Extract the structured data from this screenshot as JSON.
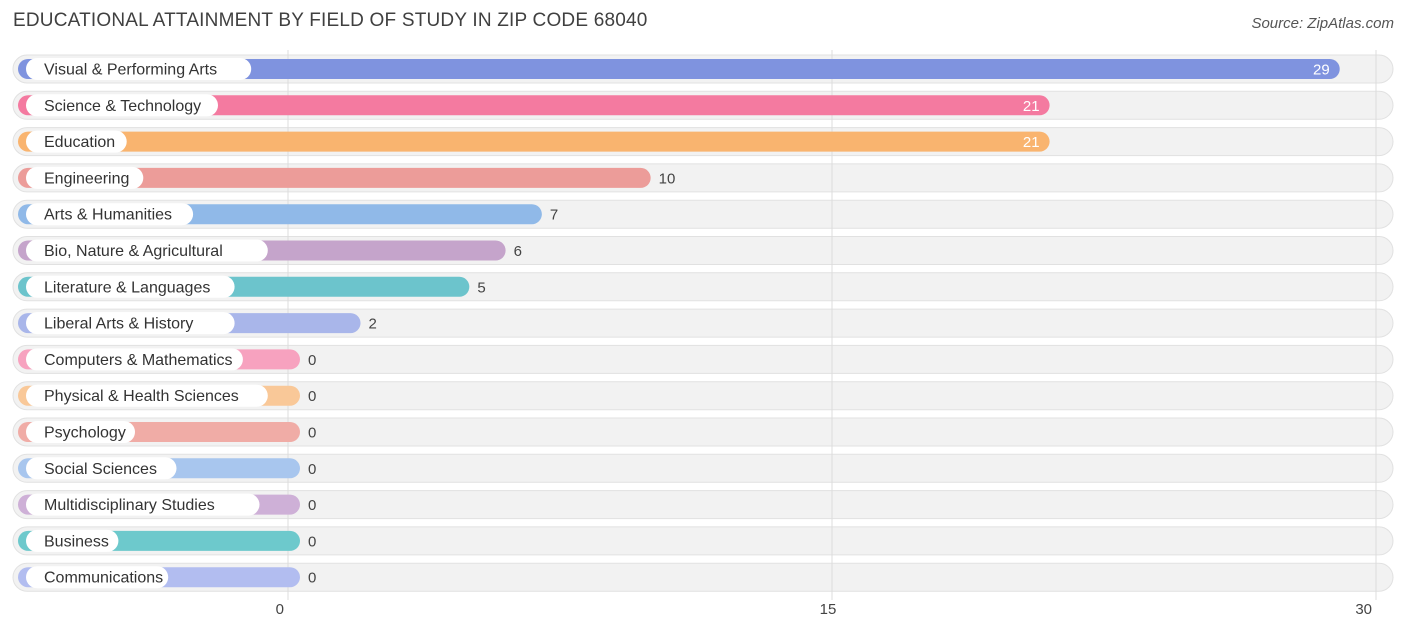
{
  "title": "EDUCATIONAL ATTAINMENT BY FIELD OF STUDY IN ZIP CODE 68040",
  "source": "Source: ZipAtlas.com",
  "chart_data": {
    "type": "bar",
    "orientation": "horizontal",
    "categories": [
      "Visual & Performing Arts",
      "Science & Technology",
      "Education",
      "Engineering",
      "Arts & Humanities",
      "Bio, Nature & Agricultural",
      "Literature & Languages",
      "Liberal Arts & History",
      "Computers & Mathematics",
      "Physical & Health Sciences",
      "Psychology",
      "Social Sciences",
      "Multidisciplinary Studies",
      "Business",
      "Communications"
    ],
    "values": [
      29,
      21,
      21,
      10,
      7,
      6,
      5,
      2,
      0,
      0,
      0,
      0,
      0,
      0,
      0
    ],
    "colors": [
      "#7f93df",
      "#f47aa0",
      "#f9b46f",
      "#ec9c99",
      "#90b9e8",
      "#c5a4cb",
      "#6cc4cc",
      "#a9b6ea",
      "#f7a2bf",
      "#f9c898",
      "#f0aca6",
      "#a8c6ee",
      "#ceb0d7",
      "#6dc9cc",
      "#b2bdf0"
    ],
    "xlim": [
      0,
      30
    ],
    "xticks": [
      "0",
      "15",
      "30"
    ],
    "grid": true,
    "value_labels_inside": [
      true,
      true,
      true,
      false,
      false,
      false,
      false,
      false,
      false,
      false,
      false,
      false,
      false,
      false,
      false
    ]
  }
}
